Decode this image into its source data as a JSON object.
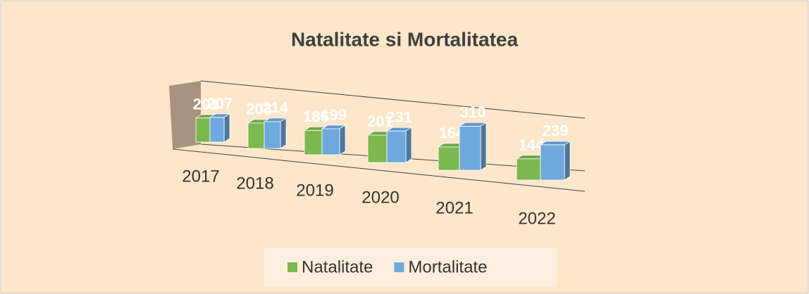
{
  "chart_data": {
    "type": "bar3d",
    "title": "Natalitate si Mortalitatea",
    "categories": [
      "2017",
      "2018",
      "2019",
      "2020",
      "2021",
      "2022"
    ],
    "series": [
      {
        "name": "Natalitate",
        "color": "#7cb84f",
        "values": [
          201,
          203,
          186,
          201,
          164,
          144
        ]
      },
      {
        "name": "Mortalitate",
        "color": "#6fa8dc",
        "values": [
          207,
          214,
          199,
          231,
          310,
          239
        ]
      }
    ],
    "legend": "bottom"
  }
}
